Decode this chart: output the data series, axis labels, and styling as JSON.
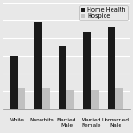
{
  "categories": [
    "White",
    "Nonwhite",
    "Married\nMale",
    "Married\nFemale",
    "Unmarried\nMale"
  ],
  "home_health": [
    0.55,
    0.9,
    0.65,
    0.8,
    0.85
  ],
  "hospice": [
    0.22,
    0.22,
    0.2,
    0.2,
    0.22
  ],
  "home_health_color": "#1a1a1a",
  "hospice_color": "#c0c0c0",
  "legend_labels": [
    "Home Health",
    "Hospice"
  ],
  "ylim": [
    0,
    1.1
  ],
  "background_color": "#e8e8e8",
  "bar_width": 0.32,
  "grid_color": "#ffffff",
  "tick_fontsize": 4.2,
  "legend_fontsize": 4.8
}
